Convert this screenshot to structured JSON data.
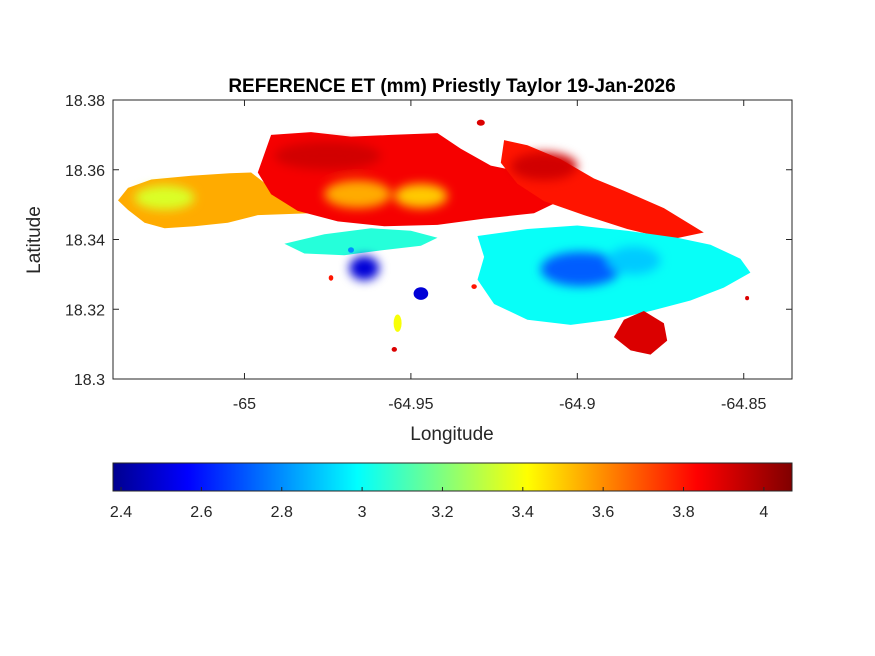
{
  "chart_data": {
    "type": "heatmap",
    "title": "REFERENCE ET (mm) Priestly Taylor 19-Jan-2026",
    "xlabel": "Longitude",
    "ylabel": "Latitude",
    "xlim": [
      -65.0395,
      -64.8355
    ],
    "ylim": [
      18.3,
      18.38
    ],
    "xticks": [
      -65,
      -64.95,
      -64.9,
      -64.85
    ],
    "xtick_labels": [
      "-65",
      "-64.95",
      "-64.9",
      "-64.85"
    ],
    "yticks": [
      18.3,
      18.32,
      18.34,
      18.36,
      18.38
    ],
    "ytick_labels": [
      "18.3",
      "18.32",
      "18.34",
      "18.36",
      "18.38"
    ],
    "grid": false,
    "colorbar": {
      "location": "bottom",
      "colormap": "jet",
      "clim": [
        2.38,
        4.07
      ],
      "ticks": [
        2.4,
        2.6,
        2.8,
        3,
        3.2,
        3.4,
        3.6,
        3.8,
        4
      ],
      "tick_labels": [
        "2.4",
        "2.6",
        "2.8",
        "3",
        "3.2",
        "3.4",
        "3.6",
        "3.8",
        "4"
      ]
    },
    "regions": [
      {
        "name": "western-lobe",
        "value": 3.55,
        "outline": [
          [
            -65.038,
            18.3512
          ],
          [
            -65.035,
            18.3548
          ],
          [
            -65.028,
            18.3572
          ],
          [
            -65.016,
            18.3583
          ],
          [
            -65.0045,
            18.359
          ],
          [
            -64.998,
            18.3592
          ],
          [
            -64.993,
            18.3555
          ],
          [
            -64.985,
            18.3502
          ],
          [
            -64.978,
            18.3488
          ],
          [
            -64.972,
            18.3478
          ],
          [
            -64.996,
            18.347
          ],
          [
            -65.005,
            18.3448
          ],
          [
            -65.015,
            18.3438
          ],
          [
            -65.024,
            18.3432
          ],
          [
            -65.03,
            18.3448
          ],
          [
            -65.035,
            18.3485
          ]
        ]
      },
      {
        "name": "central-north",
        "value": 3.85,
        "outline": [
          [
            -64.996,
            18.3592
          ],
          [
            -64.992,
            18.37
          ],
          [
            -64.98,
            18.3708
          ],
          [
            -64.968,
            18.3695
          ],
          [
            -64.956,
            18.37
          ],
          [
            -64.942,
            18.3705
          ],
          [
            -64.935,
            18.366
          ],
          [
            -64.926,
            18.3612
          ],
          [
            -64.915,
            18.359
          ],
          [
            -64.905,
            18.3575
          ],
          [
            -64.9,
            18.3535
          ],
          [
            -64.913,
            18.3475
          ],
          [
            -64.928,
            18.346
          ],
          [
            -64.942,
            18.3442
          ],
          [
            -64.958,
            18.3438
          ],
          [
            -64.972,
            18.3452
          ],
          [
            -64.984,
            18.3482
          ],
          [
            -64.992,
            18.353
          ]
        ]
      },
      {
        "name": "eastern-ridge",
        "value": 3.8,
        "outline": [
          [
            -64.922,
            18.3685
          ],
          [
            -64.915,
            18.367
          ],
          [
            -64.905,
            18.363
          ],
          [
            -64.895,
            18.3575
          ],
          [
            -64.886,
            18.354
          ],
          [
            -64.874,
            18.349
          ],
          [
            -64.862,
            18.342
          ],
          [
            -64.872,
            18.34
          ],
          [
            -64.885,
            18.343
          ],
          [
            -64.898,
            18.347
          ],
          [
            -64.91,
            18.351
          ],
          [
            -64.918,
            18.356
          ],
          [
            -64.923,
            18.362
          ]
        ]
      },
      {
        "name": "east-lobe",
        "value": 3.0,
        "outline": [
          [
            -64.93,
            18.341
          ],
          [
            -64.915,
            18.343
          ],
          [
            -64.9,
            18.344
          ],
          [
            -64.885,
            18.3425
          ],
          [
            -64.87,
            18.3405
          ],
          [
            -64.86,
            18.3385
          ],
          [
            -64.851,
            18.3345
          ],
          [
            -64.848,
            18.3305
          ],
          [
            -64.856,
            18.3262
          ],
          [
            -64.866,
            18.3225
          ],
          [
            -64.878,
            18.3195
          ],
          [
            -64.89,
            18.317
          ],
          [
            -64.902,
            18.3155
          ],
          [
            -64.915,
            18.317
          ],
          [
            -64.925,
            18.3215
          ],
          [
            -64.93,
            18.3285
          ],
          [
            -64.928,
            18.335
          ]
        ]
      },
      {
        "name": "west-of-bay",
        "value": 3.05,
        "outline": [
          [
            -64.988,
            18.3388
          ],
          [
            -64.976,
            18.3415
          ],
          [
            -64.962,
            18.3432
          ],
          [
            -64.95,
            18.3425
          ],
          [
            -64.942,
            18.3405
          ],
          [
            -64.947,
            18.3382
          ],
          [
            -64.958,
            18.337
          ],
          [
            -64.97,
            18.3355
          ],
          [
            -64.982,
            18.336
          ]
        ]
      },
      {
        "name": "southern-tip",
        "value": 3.9,
        "outline": [
          [
            -64.88,
            18.3195
          ],
          [
            -64.886,
            18.317
          ],
          [
            -64.889,
            18.312
          ],
          [
            -64.884,
            18.3082
          ],
          [
            -64.878,
            18.307
          ],
          [
            -64.873,
            18.311
          ],
          [
            -64.874,
            18.316
          ]
        ]
      }
    ],
    "patches": [
      {
        "name": "eastern-core-low",
        "x": -64.899,
        "y": 18.3315,
        "rx": 0.012,
        "ry": 0.005,
        "value": 2.72
      },
      {
        "name": "eastern-core-mid",
        "x": -64.883,
        "y": 18.334,
        "rx": 0.008,
        "ry": 0.004,
        "value": 2.9
      },
      {
        "name": "bay-shore-low",
        "x": -64.964,
        "y": 18.3318,
        "rx": 0.0045,
        "ry": 0.0035,
        "value": 2.5
      },
      {
        "name": "central-warm-1",
        "x": -64.966,
        "y": 18.353,
        "rx": 0.01,
        "ry": 0.004,
        "value": 3.55
      },
      {
        "name": "central-warm-2",
        "x": -64.947,
        "y": 18.3525,
        "rx": 0.008,
        "ry": 0.0035,
        "value": 3.5
      },
      {
        "name": "western-cool",
        "x": -65.024,
        "y": 18.352,
        "rx": 0.009,
        "ry": 0.0035,
        "value": 3.35
      },
      {
        "name": "northwest-hot",
        "x": -64.975,
        "y": 18.364,
        "rx": 0.016,
        "ry": 0.004,
        "value": 3.92
      },
      {
        "name": "northeast-hot",
        "x": -64.91,
        "y": 18.361,
        "rx": 0.01,
        "ry": 0.004,
        "value": 3.92
      },
      {
        "name": "small-island-1",
        "x": -64.947,
        "y": 18.3245,
        "rx": 0.0022,
        "ry": 0.0018,
        "value": 2.5
      },
      {
        "name": "small-island-2",
        "x": -64.954,
        "y": 18.316,
        "rx": 0.0012,
        "ry": 0.0025,
        "value": 3.4
      },
      {
        "name": "islet-1",
        "x": -64.968,
        "y": 18.337,
        "rx": 0.0009,
        "ry": 0.0008,
        "value": 2.8
      },
      {
        "name": "islet-2",
        "x": -64.974,
        "y": 18.329,
        "rx": 0.0007,
        "ry": 0.0008,
        "value": 3.8
      },
      {
        "name": "islet-3",
        "x": -64.955,
        "y": 18.3085,
        "rx": 0.0008,
        "ry": 0.0007,
        "value": 3.9
      },
      {
        "name": "islet-4",
        "x": -64.931,
        "y": 18.3265,
        "rx": 0.0008,
        "ry": 0.0007,
        "value": 3.8
      },
      {
        "name": "islet-5",
        "x": -64.849,
        "y": 18.3232,
        "rx": 0.0006,
        "ry": 0.0006,
        "value": 3.9
      },
      {
        "name": "islet-6",
        "x": -64.929,
        "y": 18.3735,
        "rx": 0.0012,
        "ry": 0.0009,
        "value": 3.9
      }
    ]
  }
}
